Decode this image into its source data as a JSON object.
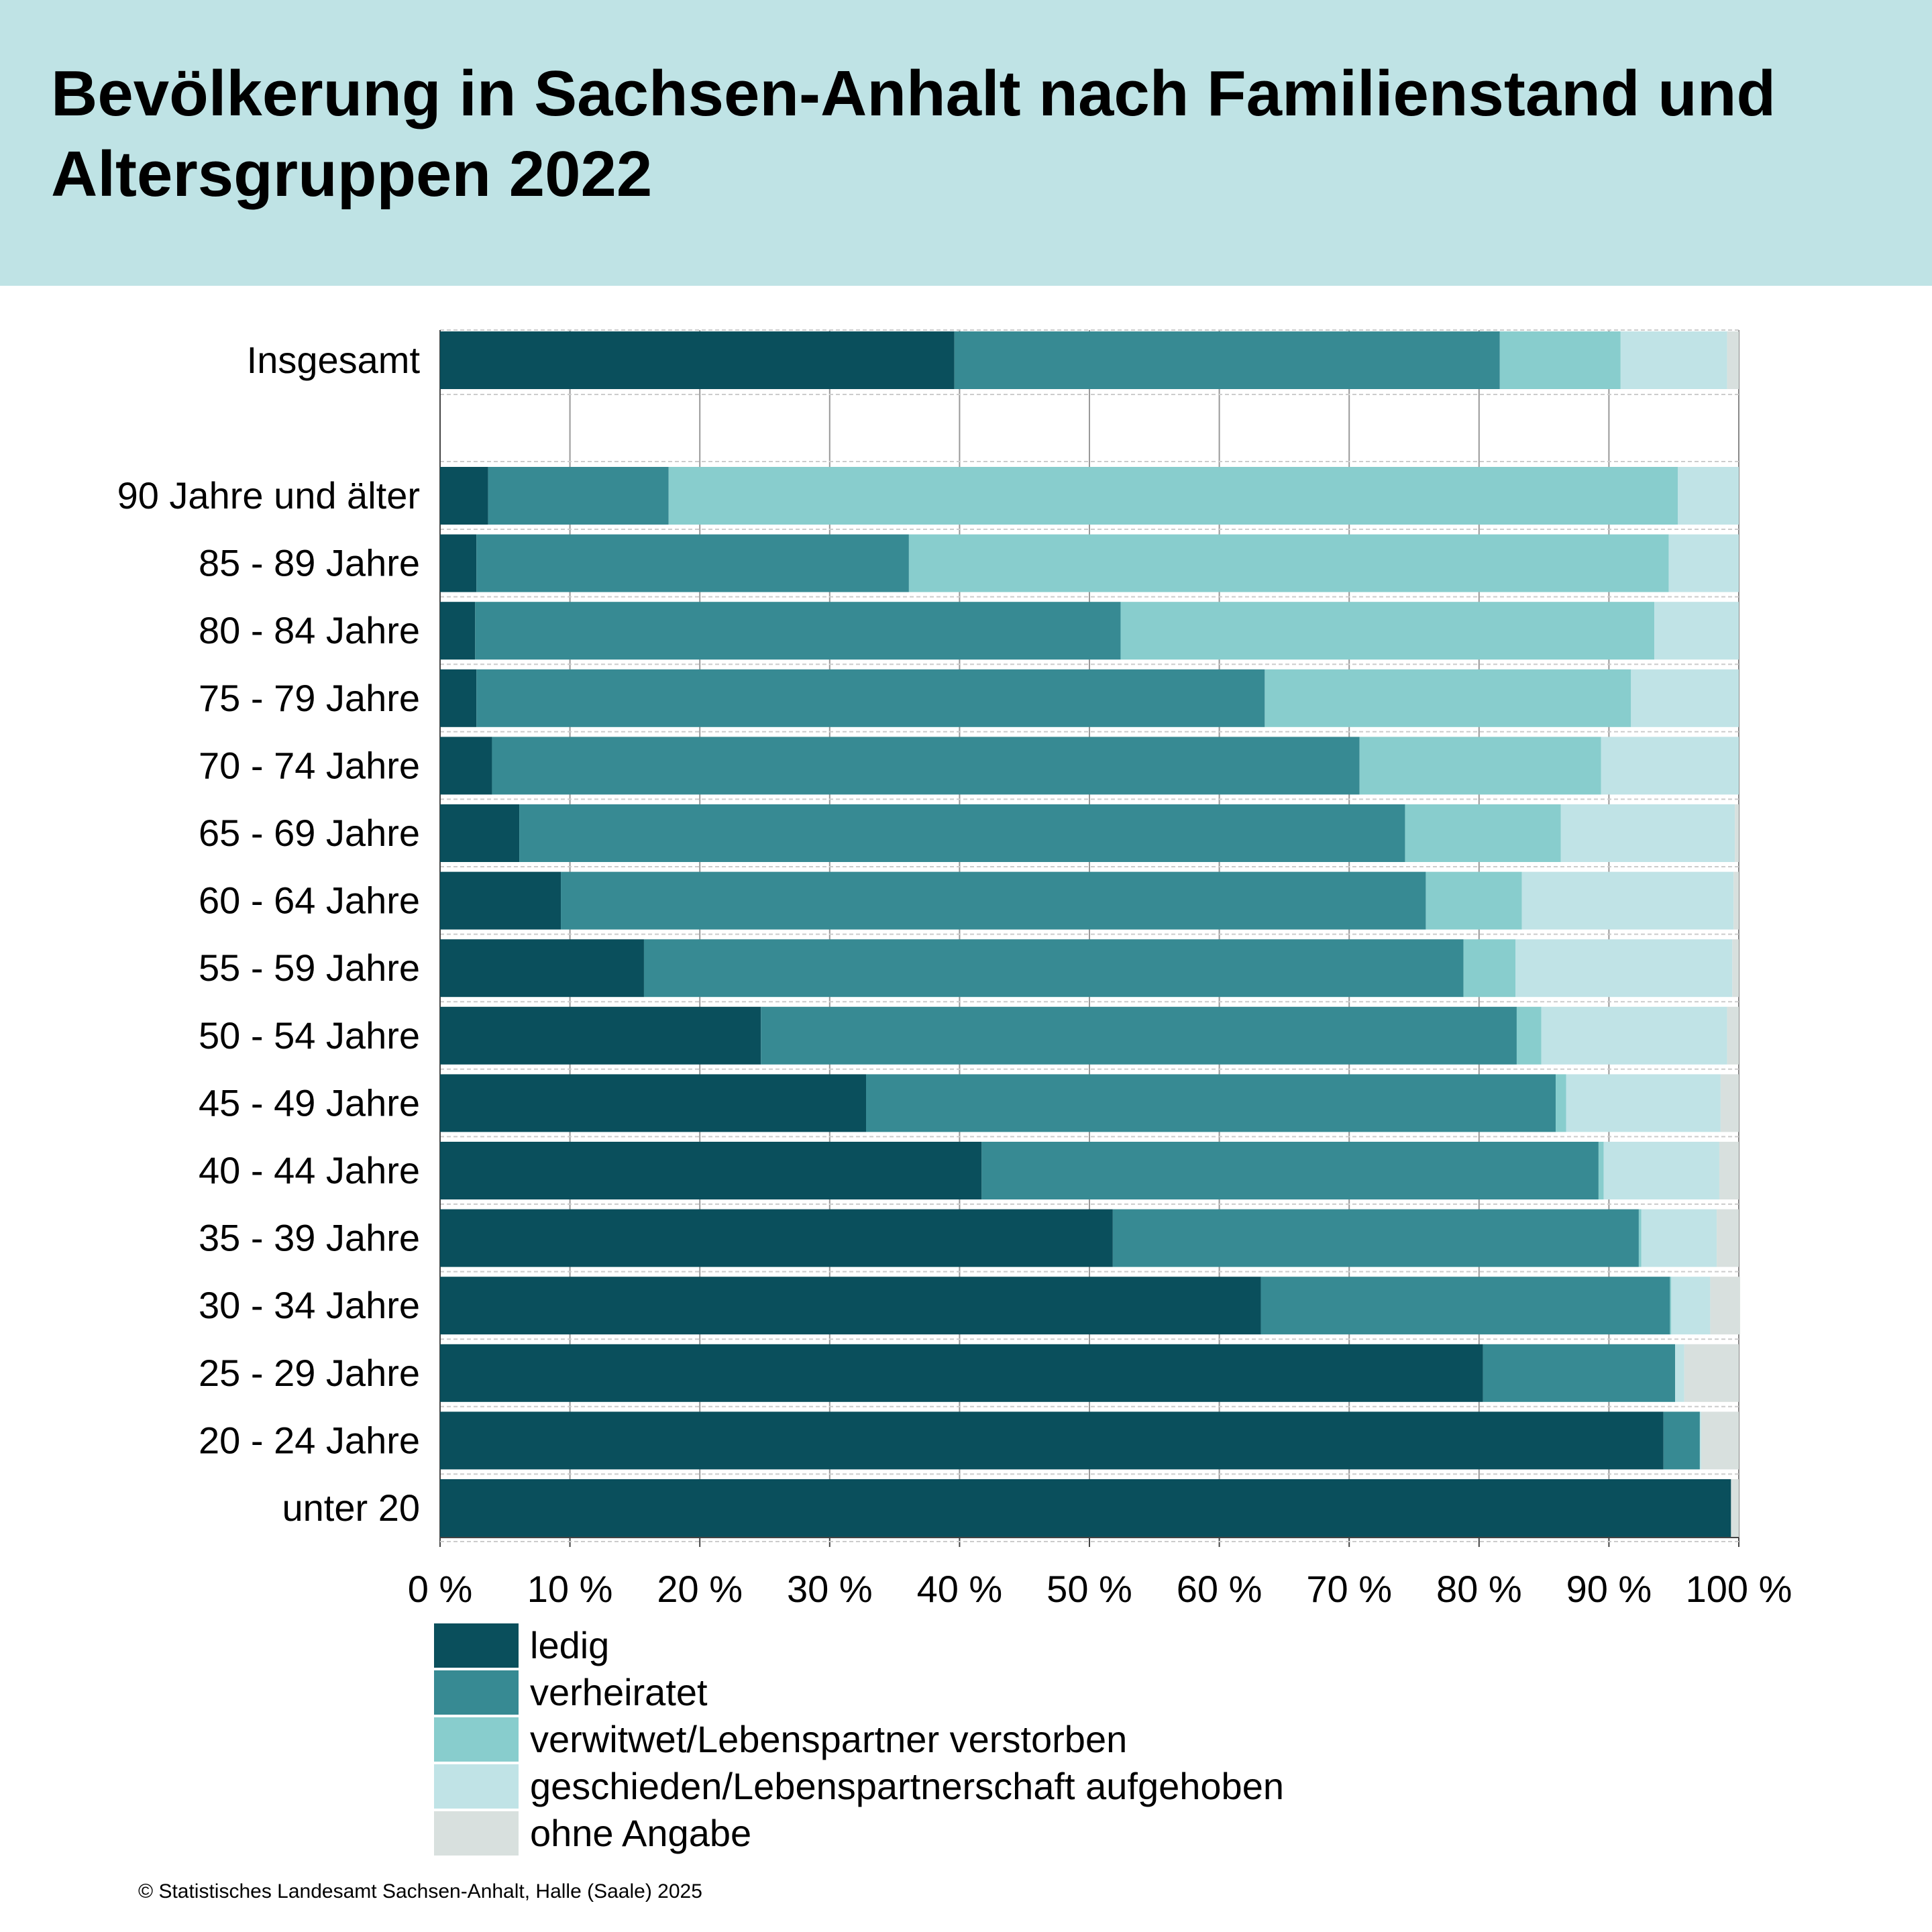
{
  "header": {
    "title": "Bevölkerung in Sachsen-Anhalt nach Familienstand und Altersgruppen 2022"
  },
  "footer": {
    "copyright": "© Statistisches Landesamt Sachsen-Anhalt, Halle (Saale) 2025"
  },
  "chart_data": {
    "type": "bar",
    "orientation": "horizontal",
    "stacked": "percent",
    "title": "Bevölkerung in Sachsen-Anhalt nach Familienstand und Altersgruppen 2022",
    "xlim": [
      0,
      100
    ],
    "x_ticks": [
      "0 %",
      "10 %",
      "20 %",
      "30 %",
      "40 %",
      "50 %",
      "60 %",
      "70 %",
      "80 %",
      "90 %",
      "100 %"
    ],
    "grid": true,
    "legend_position": "bottom",
    "categories": [
      "Insgesamt",
      "90 Jahre und älter",
      "85 - 89 Jahre",
      "80 - 84 Jahre",
      "75 - 79 Jahre",
      "70 - 74 Jahre",
      "65 - 69 Jahre",
      "60 - 64 Jahre",
      "55 - 59 Jahre",
      "50 - 54 Jahre",
      "45 - 49 Jahre",
      "40 - 44 Jahre",
      "35 - 39 Jahre",
      "30 - 34 Jahre",
      "25 - 29 Jahre",
      "20 - 24 Jahre",
      "unter 20"
    ],
    "series": [
      {
        "name": "ledig",
        "color": "#0a4f5c",
        "values": [
          39.6,
          3.7,
          2.8,
          2.7,
          2.8,
          4.0,
          6.1,
          9.3,
          15.7,
          24.7,
          32.8,
          41.7,
          51.8,
          63.2,
          80.3,
          94.2,
          99.4
        ]
      },
      {
        "name": "verheiratet",
        "color": "#378a93",
        "values": [
          42.0,
          13.9,
          33.3,
          49.7,
          60.7,
          66.8,
          68.2,
          66.6,
          63.1,
          58.2,
          53.1,
          47.5,
          40.5,
          31.5,
          14.8,
          2.8,
          0
        ]
      },
      {
        "name": "verwitwet/Lebenspartner verstorben",
        "color": "#88cdcd",
        "values": [
          9.3,
          77.7,
          58.5,
          41.1,
          28.2,
          18.6,
          12.0,
          7.4,
          4.0,
          1.9,
          0.8,
          0.4,
          0.2,
          0.1,
          0,
          0,
          0
        ]
      },
      {
        "name": "geschieden/Lebenspartnerschaft aufgehoben",
        "color": "#c0e3e6",
        "values": [
          8.2,
          4.7,
          5.4,
          6.5,
          8.3,
          10.6,
          13.4,
          16.3,
          16.7,
          14.3,
          11.9,
          8.9,
          5.8,
          3.0,
          0.7,
          0.1,
          0
        ]
      },
      {
        "name": "ohne Angabe",
        "color": "#d8e0de",
        "values": [
          0.9,
          0,
          0,
          0,
          0,
          0,
          0.3,
          0.4,
          0.5,
          0.9,
          1.4,
          1.5,
          1.7,
          2.3,
          4.2,
          2.9,
          0.6
        ]
      }
    ]
  }
}
